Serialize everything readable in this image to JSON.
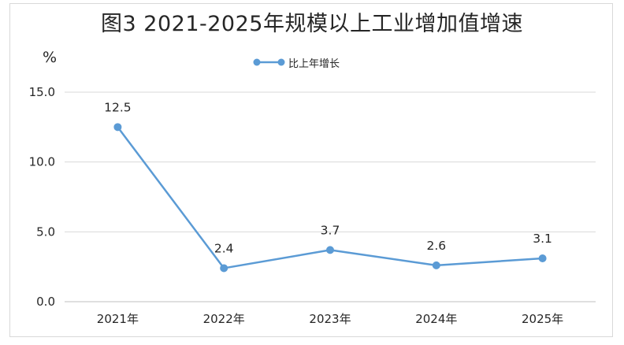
{
  "chart_data": {
    "type": "line",
    "title": "图3  2021-2025年规模以上工业增加值增速",
    "unit_label": "%",
    "categories": [
      "2021年",
      "2022年",
      "2023年",
      "2024年",
      "2025年"
    ],
    "series": [
      {
        "name": "比上年增长",
        "values": [
          12.5,
          2.4,
          3.7,
          2.6,
          3.1
        ],
        "data_labels": [
          "12.5",
          "2.4",
          "3.7",
          "2.6",
          "3.1"
        ],
        "color": "#5b9bd5"
      }
    ],
    "y_ticks": [
      "0.0",
      "5.0",
      "10.0",
      "15.0"
    ],
    "y_tick_values": [
      0,
      5,
      10,
      15
    ],
    "ylim": [
      0,
      15
    ],
    "grid": true,
    "legend_position": "top"
  }
}
